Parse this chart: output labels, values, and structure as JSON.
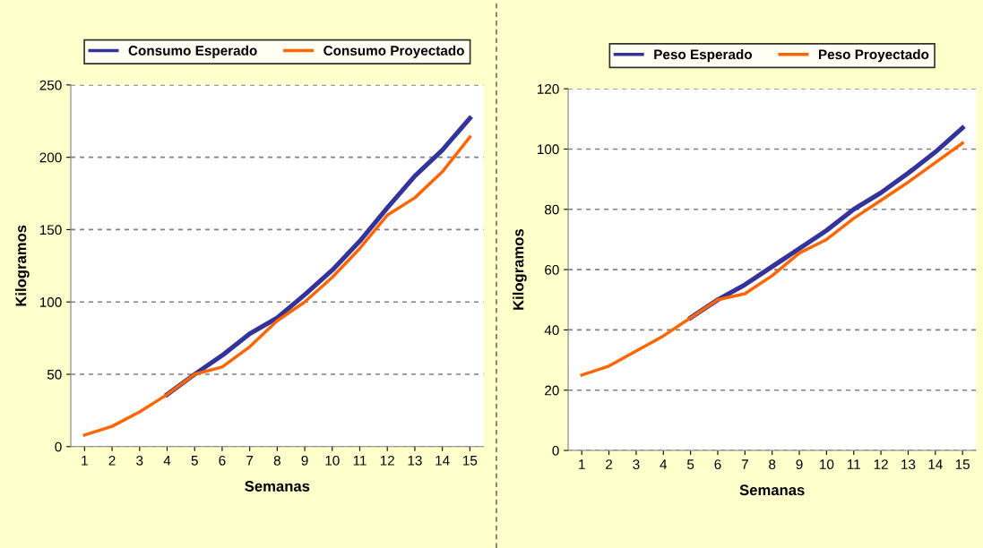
{
  "chart_data": [
    {
      "type": "line",
      "xlabel": "Semanas",
      "ylabel": "Kilogramos",
      "categories": [
        "1",
        "2",
        "3",
        "4",
        "5",
        "6",
        "7",
        "8",
        "9",
        "10",
        "11",
        "12",
        "13",
        "14",
        "15"
      ],
      "series": [
        {
          "name": "Consumo Esperado",
          "color": "#333399",
          "values": [
            null,
            null,
            null,
            36,
            50,
            63,
            78,
            89,
            105,
            122,
            142,
            165,
            187,
            205,
            227
          ]
        },
        {
          "name": "Consumo Proyectado",
          "color": "#ff6600",
          "values": [
            8,
            14,
            24,
            36,
            50,
            55,
            69,
            87,
            100,
            117,
            137,
            160,
            172,
            190,
            214
          ]
        }
      ],
      "ylim": [
        0,
        250
      ],
      "yticks": [
        0,
        50,
        100,
        150,
        200,
        250
      ],
      "grid": "y",
      "legend": "top",
      "line_style": "solid"
    },
    {
      "type": "line",
      "xlabel": "Semanas",
      "ylabel": "Kilogramos",
      "categories": [
        "1",
        "2",
        "3",
        "4",
        "5",
        "6",
        "7",
        "8",
        "9",
        "10",
        "11",
        "12",
        "13",
        "14",
        "15"
      ],
      "series": [
        {
          "name": "Peso Esperado",
          "color": "#333399",
          "values": [
            null,
            null,
            null,
            null,
            44,
            50,
            55,
            61,
            67,
            73,
            80,
            85.5,
            92,
            99,
            107
          ]
        },
        {
          "name": "Peso Proyectado",
          "color": "#ff6600",
          "values": [
            25,
            28,
            33,
            38,
            44,
            50,
            52,
            58,
            65.5,
            70,
            77,
            83,
            89,
            95.5,
            102
          ]
        }
      ],
      "ylim": [
        0,
        120
      ],
      "yticks": [
        0,
        20,
        40,
        60,
        80,
        100,
        120
      ],
      "grid": "y",
      "legend": "top",
      "line_style": "solid"
    }
  ]
}
